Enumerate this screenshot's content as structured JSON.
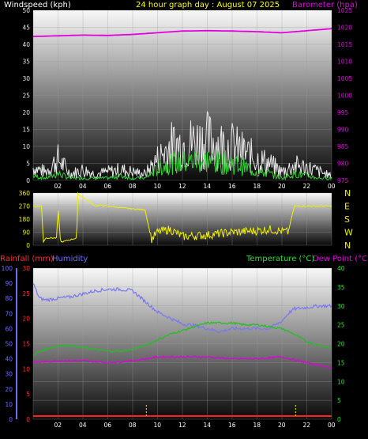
{
  "header": {
    "wind_label": "Windspeed (kph)",
    "title": "24 hour graph day : August 07 2025",
    "baro_label": "Barometer (hpa)"
  },
  "footer": {
    "rain_label": "Rainfall (mm)",
    "humidity_label": "Humidity",
    "temp_label": "Temperature (°C)",
    "dew_label": "Dew Point (°C)"
  },
  "x_ticks": [
    "02",
    "04",
    "06",
    "08",
    "10",
    "12",
    "14",
    "16",
    "18",
    "20",
    "22",
    "00"
  ],
  "colors": {
    "wind_gust": "#e8e8e8",
    "wind_avg": "#32d232",
    "barometer": "#e000e0",
    "direction": "#f0f000",
    "temperature": "#20c020",
    "dew_point": "#e000e0",
    "humidity": "#7878f0",
    "rainfall": "#ff2020",
    "rain_axis": "#ff3030",
    "temp_axis": "#30e030",
    "humidity_axis": "#7070ff",
    "wind_axis": "#e8e8e8"
  },
  "chart_data": [
    {
      "type": "line",
      "title": "24 hour graph day : August 07 2025",
      "series": [
        {
          "name": "Windspeed (kph)",
          "axis": "left",
          "ylim": [
            0,
            50
          ],
          "yticks": [
            0,
            5,
            10,
            15,
            20,
            25,
            30,
            35,
            40,
            45,
            50
          ],
          "x_hours": [
            0,
            1,
            2,
            3,
            4,
            5,
            6,
            7,
            8,
            9,
            10,
            11,
            12,
            13,
            14,
            15,
            16,
            17,
            18,
            19,
            20,
            21,
            22,
            23,
            24
          ],
          "gust": [
            6,
            4,
            10,
            3,
            5,
            3,
            4,
            5,
            4,
            3,
            10,
            16,
            17,
            18,
            19,
            17,
            16,
            13,
            10,
            8,
            4,
            7,
            6,
            4,
            2
          ],
          "average": [
            2,
            1,
            3,
            1,
            1,
            1,
            1,
            2,
            1,
            1,
            5,
            8,
            8,
            9,
            9,
            8,
            8,
            6,
            4,
            3,
            1,
            3,
            2,
            1,
            1
          ]
        },
        {
          "name": "Barometer (hpa)",
          "axis": "right",
          "ylim": [
            975,
            1025
          ],
          "yticks": [
            975,
            980,
            985,
            990,
            995,
            1000,
            1005,
            1010,
            1015,
            1020,
            1025
          ],
          "x_hours": [
            0,
            2,
            4,
            6,
            8,
            10,
            12,
            14,
            16,
            18,
            20,
            22,
            24
          ],
          "values": [
            1017.3,
            1017.5,
            1017.7,
            1017.6,
            1017.9,
            1018.4,
            1018.9,
            1019.0,
            1018.9,
            1018.7,
            1018.4,
            1019.0,
            1019.6
          ]
        }
      ]
    },
    {
      "type": "line",
      "series": [
        {
          "name": "Wind direction",
          "ylim": [
            0,
            360
          ],
          "yticks": [
            0,
            90,
            180,
            270,
            360
          ],
          "compass_labels": [
            "N",
            "W",
            "S",
            "E",
            "N"
          ],
          "x_hours": [
            0,
            0.7,
            0.8,
            1.0,
            1.9,
            2.0,
            2.2,
            3.5,
            3.6,
            5.0,
            5.5,
            7.5,
            8.0,
            9.0,
            9.5,
            10.0,
            11.0,
            12.0,
            14.0,
            16.0,
            18.0,
            19.0,
            20.5,
            21.0,
            21.5,
            24.0
          ],
          "values": [
            270,
            270,
            20,
            50,
            50,
            265,
            20,
            50,
            355,
            270,
            275,
            255,
            250,
            245,
            40,
            90,
            110,
            60,
            70,
            90,
            100,
            110,
            90,
            270,
            270,
            270
          ]
        }
      ]
    },
    {
      "type": "line",
      "series": [
        {
          "name": "Temperature (°C)",
          "axis": "right",
          "ylim": [
            0,
            40
          ],
          "yticks": [
            0,
            5,
            10,
            15,
            20,
            25,
            30,
            35,
            40
          ],
          "x_hours": [
            0,
            1,
            2,
            3,
            4,
            5,
            6,
            7,
            8,
            9,
            10,
            11,
            12,
            13,
            14,
            15,
            16,
            17,
            18,
            19,
            20,
            21,
            22,
            23,
            24
          ],
          "values": [
            17.0,
            18.5,
            19.5,
            19.5,
            19.0,
            18.5,
            18.0,
            18.0,
            18.5,
            19.5,
            21.0,
            22.5,
            23.5,
            24.5,
            25.5,
            25.5,
            25.5,
            25.0,
            25.0,
            24.5,
            24.0,
            22.5,
            20.5,
            19.5,
            19.0
          ]
        },
        {
          "name": "Dew Point (°C)",
          "axis": "right",
          "ylim": [
            0,
            40
          ],
          "x_hours": [
            0,
            2,
            4,
            6,
            8,
            10,
            12,
            14,
            16,
            18,
            20,
            22,
            24
          ],
          "values": [
            15.0,
            15.5,
            15.5,
            15.0,
            15.5,
            16.5,
            16.5,
            16.5,
            16.0,
            16.0,
            16.5,
            15.0,
            13.5
          ]
        },
        {
          "name": "Humidity",
          "axis": "left",
          "ylim": [
            0,
            100
          ],
          "yticks": [
            0,
            10,
            20,
            30,
            40,
            50,
            60,
            70,
            80,
            90,
            100
          ],
          "x_hours": [
            0,
            0.5,
            1,
            2,
            3,
            4,
            5,
            6,
            7,
            8,
            9,
            10,
            11,
            12,
            13,
            14,
            15,
            16,
            17,
            18,
            19,
            20,
            20.5,
            21,
            22,
            23,
            24
          ],
          "values": [
            90,
            80,
            79,
            80,
            81,
            83,
            85,
            86,
            86,
            85,
            78,
            71,
            67,
            63,
            62,
            60,
            58,
            60,
            60,
            60,
            60,
            65,
            70,
            73,
            74,
            75,
            75
          ]
        },
        {
          "name": "Rainfall (mm)",
          "axis": "left2",
          "ylim": [
            0,
            30
          ],
          "yticks": [
            0,
            5,
            10,
            15,
            20,
            25,
            30
          ],
          "x_hours": [
            0,
            24
          ],
          "values": [
            0,
            0
          ]
        }
      ]
    }
  ]
}
